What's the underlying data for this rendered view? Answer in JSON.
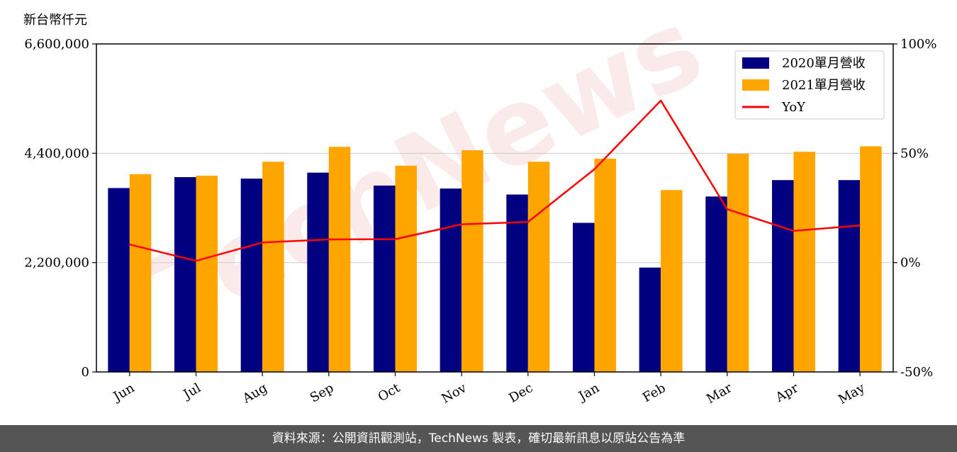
{
  "chart_data": {
    "type": "bar",
    "y_unit_label": "新台幣仟元",
    "categories": [
      "Jun",
      "Jul",
      "Aug",
      "Sep",
      "Oct",
      "Nov",
      "Dec",
      "Jan",
      "Feb",
      "Mar",
      "Apr",
      "May"
    ],
    "series": [
      {
        "name": "2020單月營收",
        "type": "bar",
        "axis": "left",
        "color": "#000080",
        "values": [
          3700000,
          3920000,
          3890000,
          4010000,
          3750000,
          3690000,
          3570000,
          3000000,
          2100000,
          3530000,
          3860000,
          3860000
        ]
      },
      {
        "name": "2021單月營收",
        "type": "bar",
        "axis": "left",
        "color": "#FFA500",
        "values": [
          3980000,
          3950000,
          4230000,
          4530000,
          4150000,
          4460000,
          4230000,
          4290000,
          3660000,
          4390000,
          4430000,
          4540000
        ]
      },
      {
        "name": "YoY",
        "type": "line",
        "axis": "right",
        "color": "#FF0000",
        "values": [
          8.3,
          0.8,
          9.2,
          10.6,
          10.7,
          17.5,
          18.6,
          42.7,
          74.1,
          24.4,
          14.5,
          17.0
        ]
      }
    ],
    "left_axis": {
      "ylim": [
        0,
        6600000
      ],
      "ticks": [
        0,
        2200000,
        4400000,
        6600000
      ],
      "tick_labels": [
        "0",
        "2,200,000",
        "4,400,000",
        "6,600,000"
      ]
    },
    "right_axis": {
      "ylim": [
        -50,
        100
      ],
      "ticks": [
        -50,
        0,
        50,
        100
      ],
      "tick_labels": [
        "-50%",
        "0%",
        "50%",
        "100%"
      ]
    },
    "grid": "horizontal",
    "legend_position": "top-right"
  },
  "watermark": "TechNews",
  "footer": "資料來源：公開資訊觀測站，TechNews 製表，確切最新訊息以原站公告為準",
  "colors": {
    "footer_bg": "#555555",
    "grid": "#cccccc"
  }
}
